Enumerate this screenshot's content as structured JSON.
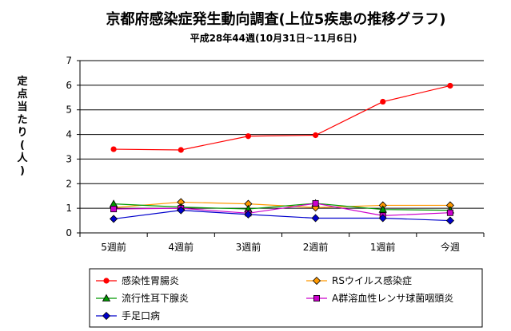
{
  "chart_data": {
    "type": "line",
    "title": "京都府感染症発生動向調査(上位5疾患の推移グラフ)",
    "subtitle": "平成28年44週(10月31日~11月6日)",
    "ylabel": "定点当たり(人)",
    "xlabel": "",
    "categories": [
      "5週前",
      "4週前",
      "3週前",
      "2週前",
      "1週前",
      "今週"
    ],
    "ylim": [
      0,
      7
    ],
    "yticks": [
      "0",
      "1",
      "2",
      "3",
      "4",
      "5",
      "6",
      "7"
    ],
    "grid": true,
    "legend_position": "bottom",
    "series": [
      {
        "name": "感染性胃腸炎",
        "color": "#ff0000",
        "marker": "circle",
        "values": [
          3.4,
          3.37,
          3.93,
          3.97,
          5.33,
          5.98
        ]
      },
      {
        "name": "RSウイルス感染症",
        "color": "#ff9900",
        "marker": "diamond",
        "values": [
          1.03,
          1.25,
          1.18,
          1.03,
          1.12,
          1.12
        ]
      },
      {
        "name": "流行性耳下腺炎",
        "color": "#009900",
        "marker": "triangle",
        "values": [
          1.18,
          1.05,
          0.97,
          1.2,
          0.95,
          0.92
        ]
      },
      {
        "name": "A群溶血性レンサ球菌咽頭炎",
        "color": "#cc00cc",
        "marker": "square",
        "values": [
          0.97,
          1.0,
          0.8,
          1.2,
          0.7,
          0.82
        ]
      },
      {
        "name": "手足口病",
        "color": "#0000cc",
        "marker": "diamond",
        "values": [
          0.57,
          0.92,
          0.75,
          0.6,
          0.6,
          0.5
        ]
      }
    ]
  }
}
